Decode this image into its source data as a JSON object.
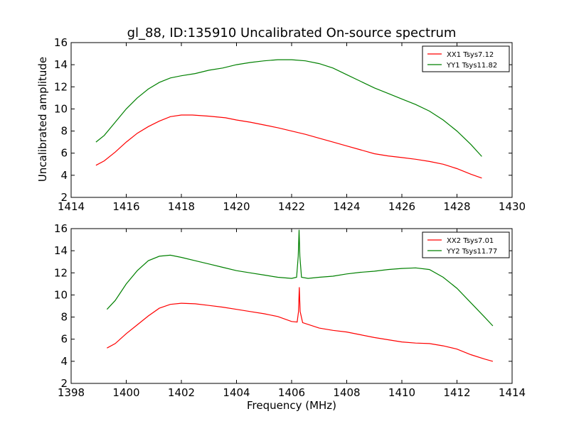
{
  "chart_data": {
    "type": "line",
    "title": "gl_88, ID:135910 Uncalibrated On-source spectrum",
    "ylabel": "Uncalibrated amplitude",
    "xlabel": "Frequency (MHz)",
    "panels": [
      {
        "xlim": [
          1414,
          1430
        ],
        "ylim": [
          2,
          16
        ],
        "xticks": [
          "1414",
          "1416",
          "1418",
          "1420",
          "1422",
          "1424",
          "1426",
          "1428",
          "1430"
        ],
        "yticks": [
          "2",
          "4",
          "6",
          "8",
          "10",
          "12",
          "14",
          "16"
        ],
        "legend_position": "top-right",
        "series": [
          {
            "name": "XX1 Tsys7.12",
            "color": "#ff0000",
            "points": [
              [
                1414.9,
                4.9
              ],
              [
                1415.2,
                5.3
              ],
              [
                1415.6,
                6.1
              ],
              [
                1416.0,
                7.0
              ],
              [
                1416.4,
                7.8
              ],
              [
                1416.8,
                8.4
              ],
              [
                1417.2,
                8.9
              ],
              [
                1417.6,
                9.3
              ],
              [
                1418.0,
                9.45
              ],
              [
                1418.4,
                9.45
              ],
              [
                1419.0,
                9.35
              ],
              [
                1419.6,
                9.2
              ],
              [
                1420.0,
                9.0
              ],
              [
                1420.5,
                8.8
              ],
              [
                1421.0,
                8.55
              ],
              [
                1421.5,
                8.3
              ],
              [
                1422.0,
                8.0
              ],
              [
                1422.5,
                7.7
              ],
              [
                1423.0,
                7.35
              ],
              [
                1423.5,
                7.0
              ],
              [
                1424.0,
                6.65
              ],
              [
                1424.5,
                6.3
              ],
              [
                1425.0,
                5.95
              ],
              [
                1425.5,
                5.75
              ],
              [
                1426.0,
                5.6
              ],
              [
                1426.5,
                5.45
              ],
              [
                1427.0,
                5.25
              ],
              [
                1427.5,
                5.0
              ],
              [
                1428.0,
                4.6
              ],
              [
                1428.5,
                4.1
              ],
              [
                1428.9,
                3.75
              ]
            ]
          },
          {
            "name": "YY1 Tsys11.82",
            "color": "#008000",
            "points": [
              [
                1414.9,
                7.0
              ],
              [
                1415.2,
                7.6
              ],
              [
                1415.6,
                8.8
              ],
              [
                1416.0,
                10.0
              ],
              [
                1416.4,
                11.0
              ],
              [
                1416.8,
                11.8
              ],
              [
                1417.2,
                12.4
              ],
              [
                1417.6,
                12.8
              ],
              [
                1418.0,
                13.0
              ],
              [
                1418.5,
                13.2
              ],
              [
                1419.0,
                13.5
              ],
              [
                1419.5,
                13.7
              ],
              [
                1420.0,
                14.0
              ],
              [
                1420.5,
                14.2
              ],
              [
                1421.0,
                14.35
              ],
              [
                1421.5,
                14.45
              ],
              [
                1422.0,
                14.45
              ],
              [
                1422.5,
                14.35
              ],
              [
                1423.0,
                14.1
              ],
              [
                1423.5,
                13.7
              ],
              [
                1424.0,
                13.1
              ],
              [
                1424.5,
                12.5
              ],
              [
                1425.0,
                11.9
              ],
              [
                1425.5,
                11.4
              ],
              [
                1426.0,
                10.9
              ],
              [
                1426.5,
                10.4
              ],
              [
                1427.0,
                9.8
              ],
              [
                1427.5,
                9.0
              ],
              [
                1428.0,
                8.0
              ],
              [
                1428.5,
                6.8
              ],
              [
                1428.9,
                5.7
              ]
            ]
          }
        ]
      },
      {
        "xlim": [
          1398,
          1414
        ],
        "ylim": [
          2,
          16
        ],
        "xticks": [
          "1398",
          "1400",
          "1402",
          "1404",
          "1406",
          "1408",
          "1410",
          "1412",
          "1414"
        ],
        "yticks": [
          "2",
          "4",
          "6",
          "8",
          "10",
          "12",
          "14",
          "16"
        ],
        "legend_position": "top-right",
        "series": [
          {
            "name": "XX2 Tsys7.01",
            "color": "#ff0000",
            "points": [
              [
                1399.3,
                5.2
              ],
              [
                1399.6,
                5.6
              ],
              [
                1400.0,
                6.5
              ],
              [
                1400.4,
                7.3
              ],
              [
                1400.8,
                8.1
              ],
              [
                1401.2,
                8.8
              ],
              [
                1401.6,
                9.15
              ],
              [
                1402.0,
                9.25
              ],
              [
                1402.5,
                9.2
              ],
              [
                1403.0,
                9.05
              ],
              [
                1403.5,
                8.9
              ],
              [
                1404.0,
                8.7
              ],
              [
                1404.5,
                8.5
              ],
              [
                1405.0,
                8.3
              ],
              [
                1405.5,
                8.05
              ],
              [
                1406.0,
                7.6
              ],
              [
                1406.2,
                7.55
              ],
              [
                1406.25,
                8.5
              ],
              [
                1406.28,
                10.7
              ],
              [
                1406.31,
                8.5
              ],
              [
                1406.4,
                7.5
              ],
              [
                1407.0,
                7.0
              ],
              [
                1407.5,
                6.8
              ],
              [
                1408.0,
                6.65
              ],
              [
                1408.5,
                6.4
              ],
              [
                1409.0,
                6.15
              ],
              [
                1409.5,
                5.95
              ],
              [
                1410.0,
                5.75
              ],
              [
                1410.5,
                5.65
              ],
              [
                1411.0,
                5.6
              ],
              [
                1411.5,
                5.4
              ],
              [
                1412.0,
                5.1
              ],
              [
                1412.5,
                4.6
              ],
              [
                1413.0,
                4.2
              ],
              [
                1413.3,
                4.0
              ]
            ]
          },
          {
            "name": "YY2 Tsys11.77",
            "color": "#008000",
            "points": [
              [
                1399.3,
                8.7
              ],
              [
                1399.6,
                9.5
              ],
              [
                1400.0,
                11.0
              ],
              [
                1400.4,
                12.2
              ],
              [
                1400.8,
                13.1
              ],
              [
                1401.2,
                13.5
              ],
              [
                1401.6,
                13.6
              ],
              [
                1402.0,
                13.4
              ],
              [
                1402.5,
                13.1
              ],
              [
                1403.0,
                12.8
              ],
              [
                1403.5,
                12.5
              ],
              [
                1404.0,
                12.2
              ],
              [
                1404.5,
                12.0
              ],
              [
                1405.0,
                11.8
              ],
              [
                1405.5,
                11.6
              ],
              [
                1406.0,
                11.5
              ],
              [
                1406.18,
                11.6
              ],
              [
                1406.24,
                13.5
              ],
              [
                1406.27,
                15.9
              ],
              [
                1406.3,
                13.5
              ],
              [
                1406.36,
                11.6
              ],
              [
                1406.6,
                11.5
              ],
              [
                1407.0,
                11.6
              ],
              [
                1407.5,
                11.7
              ],
              [
                1408.0,
                11.9
              ],
              [
                1408.5,
                12.05
              ],
              [
                1409.0,
                12.15
              ],
              [
                1409.5,
                12.3
              ],
              [
                1410.0,
                12.4
              ],
              [
                1410.5,
                12.45
              ],
              [
                1411.0,
                12.3
              ],
              [
                1411.5,
                11.6
              ],
              [
                1412.0,
                10.6
              ],
              [
                1412.5,
                9.3
              ],
              [
                1413.0,
                8.0
              ],
              [
                1413.3,
                7.2
              ]
            ]
          }
        ]
      }
    ]
  }
}
